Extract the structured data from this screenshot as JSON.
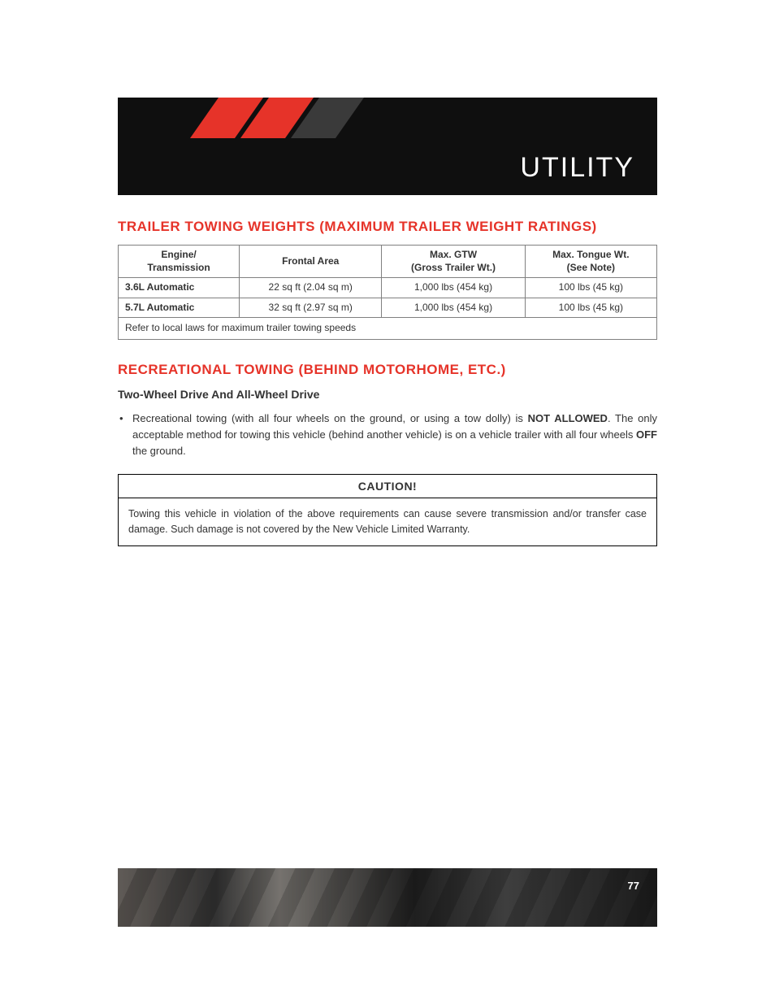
{
  "banner": {
    "title": "UTILITY"
  },
  "section1": {
    "heading": "TRAILER TOWING WEIGHTS (MAXIMUM TRAILER WEIGHT RATINGS)",
    "table": {
      "columns": [
        {
          "line1": "Engine/",
          "line2": "Transmission"
        },
        {
          "line1": "Frontal Area",
          "line2": ""
        },
        {
          "line1": "Max. GTW",
          "line2": "(Gross Trailer Wt.)"
        },
        {
          "line1": "Max. Tongue Wt.",
          "line2": "(See Note)"
        }
      ],
      "rows": [
        {
          "c0": "3.6L Automatic",
          "c1": "22 sq ft (2.04 sq m)",
          "c2": "1,000 lbs (454 kg)",
          "c3": "100 lbs (45 kg)"
        },
        {
          "c0": "5.7L Automatic",
          "c1": "32 sq ft (2.97 sq m)",
          "c2": "1,000 lbs (454 kg)",
          "c3": "100 lbs (45 kg)"
        }
      ],
      "footnote": "Refer to local laws for maximum trailer towing speeds"
    }
  },
  "section2": {
    "heading": "RECREATIONAL TOWING (BEHIND MOTORHOME, ETC.)",
    "subheading": "Two-Wheel Drive And All-Wheel Drive",
    "bullet": {
      "pre": "Recreational towing (with all four wheels on the ground, or using a tow dolly) is ",
      "bold1": "NOT ALLOWED",
      "mid": ". The only acceptable method for towing this vehicle (behind another vehicle) is on a vehicle trailer with all four wheels ",
      "bold2": "OFF",
      "post": " the ground."
    },
    "caution": {
      "title": "CAUTION!",
      "body": "Towing this vehicle in violation of the above requirements can cause severe transmission and/or transfer case damage. Such damage is not covered by the New Vehicle Limited Warranty."
    }
  },
  "footer": {
    "page": "77"
  },
  "colors": {
    "accent": "#e63329",
    "banner_bg": "#0f0f0f",
    "text": "#333333",
    "border": "#808080"
  }
}
